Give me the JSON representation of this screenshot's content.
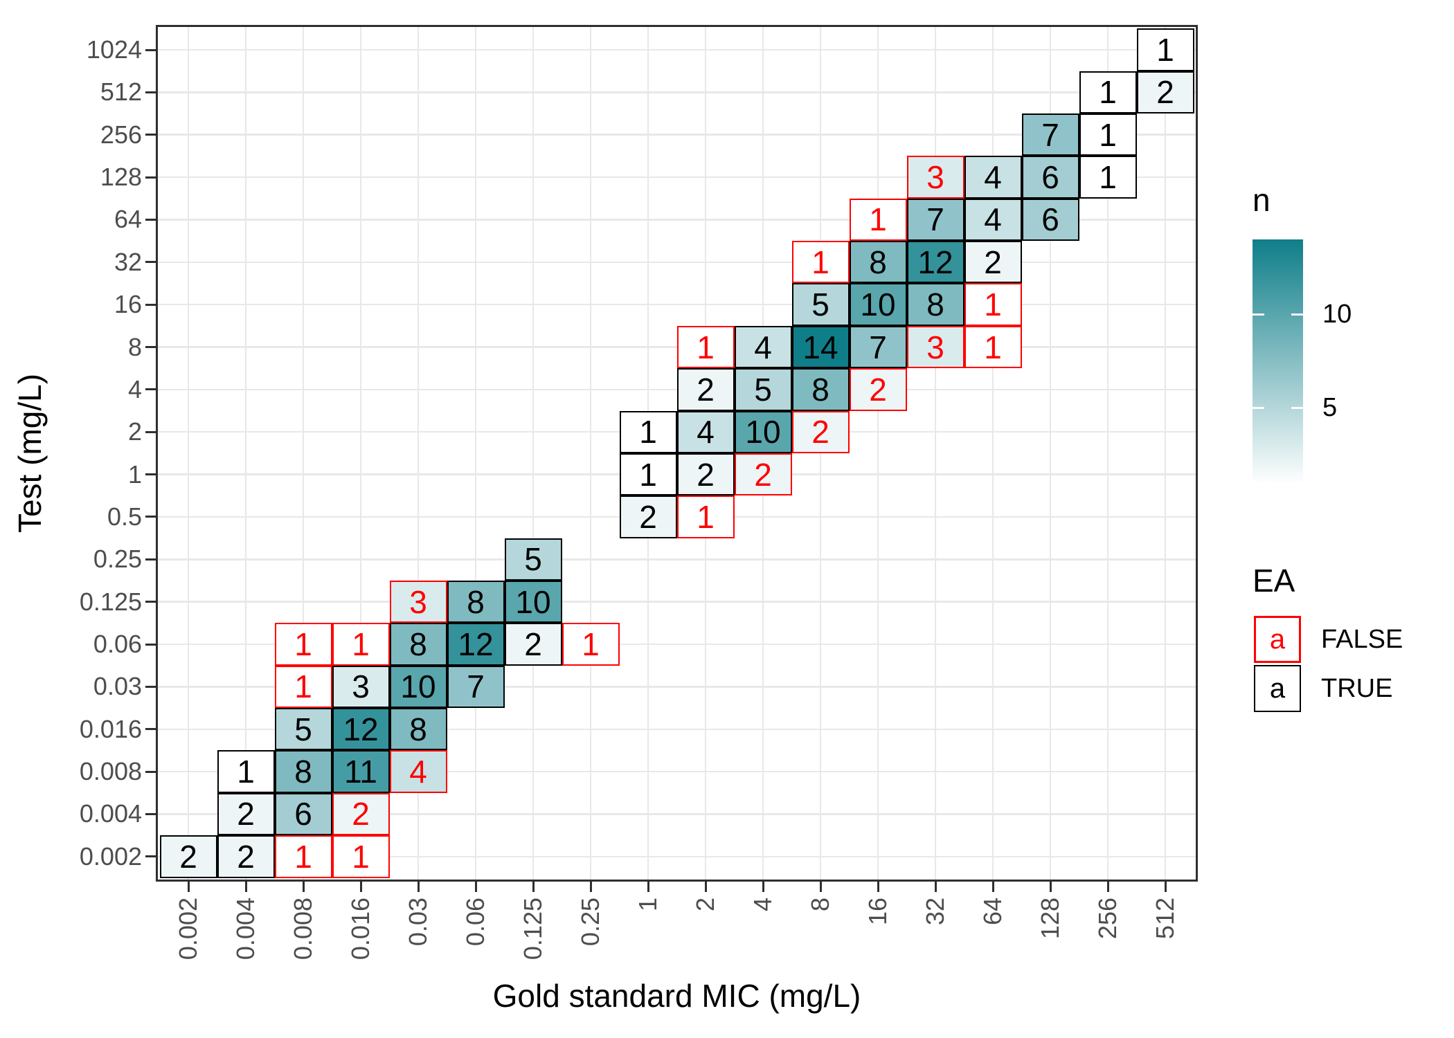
{
  "chart_data": {
    "type": "heatmap",
    "title": "",
    "xlabel": "Gold standard MIC (mg/L)",
    "ylabel": "Test (mg/L)",
    "x_categories": [
      "0.002",
      "0.004",
      "0.008",
      "0.016",
      "0.03",
      "0.06",
      "0.125",
      "0.25",
      "1",
      "2",
      "4",
      "8",
      "16",
      "32",
      "64",
      "128",
      "256",
      "512"
    ],
    "y_categories": [
      "1024",
      "512",
      "256",
      "128",
      "64",
      "32",
      "16",
      "8",
      "4",
      "2",
      "1",
      "0.5",
      "0.25",
      "0.125",
      "0.06",
      "0.03",
      "0.016",
      "0.008",
      "0.004",
      "0.002"
    ],
    "grid": true,
    "legend_position": "right",
    "n_range": [
      1,
      14
    ],
    "tiles": [
      {
        "y": "1024",
        "x": "512",
        "n": 1,
        "ea": true
      },
      {
        "y": "512",
        "x": "256",
        "n": 1,
        "ea": true
      },
      {
        "y": "512",
        "x": "512",
        "n": 2,
        "ea": true
      },
      {
        "y": "256",
        "x": "128",
        "n": 7,
        "ea": true
      },
      {
        "y": "256",
        "x": "256",
        "n": 1,
        "ea": true
      },
      {
        "y": "128",
        "x": "32",
        "n": 3,
        "ea": false
      },
      {
        "y": "128",
        "x": "64",
        "n": 4,
        "ea": true
      },
      {
        "y": "128",
        "x": "128",
        "n": 6,
        "ea": true
      },
      {
        "y": "128",
        "x": "256",
        "n": 1,
        "ea": true
      },
      {
        "y": "64",
        "x": "16",
        "n": 1,
        "ea": false
      },
      {
        "y": "64",
        "x": "32",
        "n": 7,
        "ea": true
      },
      {
        "y": "64",
        "x": "64",
        "n": 4,
        "ea": true
      },
      {
        "y": "64",
        "x": "128",
        "n": 6,
        "ea": true
      },
      {
        "y": "32",
        "x": "8",
        "n": 1,
        "ea": false
      },
      {
        "y": "32",
        "x": "16",
        "n": 8,
        "ea": true
      },
      {
        "y": "32",
        "x": "32",
        "n": 12,
        "ea": true
      },
      {
        "y": "32",
        "x": "64",
        "n": 2,
        "ea": true
      },
      {
        "y": "16",
        "x": "8",
        "n": 5,
        "ea": true
      },
      {
        "y": "16",
        "x": "16",
        "n": 10,
        "ea": true
      },
      {
        "y": "16",
        "x": "32",
        "n": 8,
        "ea": true
      },
      {
        "y": "16",
        "x": "64",
        "n": 1,
        "ea": false
      },
      {
        "y": "8",
        "x": "2",
        "n": 1,
        "ea": false
      },
      {
        "y": "8",
        "x": "4",
        "n": 4,
        "ea": true
      },
      {
        "y": "8",
        "x": "8",
        "n": 14,
        "ea": true
      },
      {
        "y": "8",
        "x": "16",
        "n": 7,
        "ea": true
      },
      {
        "y": "8",
        "x": "32",
        "n": 3,
        "ea": false
      },
      {
        "y": "8",
        "x": "64",
        "n": 1,
        "ea": false
      },
      {
        "y": "4",
        "x": "2",
        "n": 2,
        "ea": true
      },
      {
        "y": "4",
        "x": "4",
        "n": 5,
        "ea": true
      },
      {
        "y": "4",
        "x": "8",
        "n": 8,
        "ea": true
      },
      {
        "y": "4",
        "x": "16",
        "n": 2,
        "ea": false
      },
      {
        "y": "2",
        "x": "1",
        "n": 1,
        "ea": true
      },
      {
        "y": "2",
        "x": "2",
        "n": 4,
        "ea": true
      },
      {
        "y": "2",
        "x": "4",
        "n": 10,
        "ea": true
      },
      {
        "y": "2",
        "x": "8",
        "n": 2,
        "ea": false
      },
      {
        "y": "1",
        "x": "1",
        "n": 1,
        "ea": true
      },
      {
        "y": "1",
        "x": "2",
        "n": 2,
        "ea": true
      },
      {
        "y": "1",
        "x": "4",
        "n": 2,
        "ea": false
      },
      {
        "y": "0.5",
        "x": "1",
        "n": 2,
        "ea": true
      },
      {
        "y": "0.5",
        "x": "2",
        "n": 1,
        "ea": false
      },
      {
        "y": "0.25",
        "x": "0.125",
        "n": 5,
        "ea": true
      },
      {
        "y": "0.125",
        "x": "0.03",
        "n": 3,
        "ea": false
      },
      {
        "y": "0.125",
        "x": "0.06",
        "n": 8,
        "ea": true
      },
      {
        "y": "0.125",
        "x": "0.125",
        "n": 10,
        "ea": true
      },
      {
        "y": "0.06",
        "x": "0.008",
        "n": 1,
        "ea": false
      },
      {
        "y": "0.06",
        "x": "0.016",
        "n": 1,
        "ea": false
      },
      {
        "y": "0.06",
        "x": "0.03",
        "n": 8,
        "ea": true
      },
      {
        "y": "0.06",
        "x": "0.06",
        "n": 12,
        "ea": true
      },
      {
        "y": "0.06",
        "x": "0.125",
        "n": 2,
        "ea": true
      },
      {
        "y": "0.06",
        "x": "0.25",
        "n": 1,
        "ea": false
      },
      {
        "y": "0.03",
        "x": "0.008",
        "n": 1,
        "ea": false
      },
      {
        "y": "0.03",
        "x": "0.016",
        "n": 3,
        "ea": true
      },
      {
        "y": "0.03",
        "x": "0.03",
        "n": 10,
        "ea": true
      },
      {
        "y": "0.03",
        "x": "0.06",
        "n": 7,
        "ea": true
      },
      {
        "y": "0.016",
        "x": "0.008",
        "n": 5,
        "ea": true
      },
      {
        "y": "0.016",
        "x": "0.016",
        "n": 12,
        "ea": true
      },
      {
        "y": "0.016",
        "x": "0.03",
        "n": 8,
        "ea": true
      },
      {
        "y": "0.008",
        "x": "0.004",
        "n": 1,
        "ea": true
      },
      {
        "y": "0.008",
        "x": "0.008",
        "n": 8,
        "ea": true
      },
      {
        "y": "0.008",
        "x": "0.016",
        "n": 11,
        "ea": true
      },
      {
        "y": "0.008",
        "x": "0.03",
        "n": 4,
        "ea": false
      },
      {
        "y": "0.004",
        "x": "0.004",
        "n": 2,
        "ea": true
      },
      {
        "y": "0.004",
        "x": "0.008",
        "n": 6,
        "ea": true
      },
      {
        "y": "0.004",
        "x": "0.016",
        "n": 2,
        "ea": false
      },
      {
        "y": "0.002",
        "x": "0.002",
        "n": 2,
        "ea": true
      },
      {
        "y": "0.002",
        "x": "0.004",
        "n": 2,
        "ea": true
      },
      {
        "y": "0.002",
        "x": "0.008",
        "n": 1,
        "ea": false
      },
      {
        "y": "0.002",
        "x": "0.016",
        "n": 1,
        "ea": false
      }
    ]
  },
  "legend_n": {
    "title": "n",
    "gradient_low": "#FFFFFF",
    "gradient_high": "#0F7E89",
    "limits": [
      1,
      14
    ],
    "ticks": [
      {
        "label": "10",
        "value": 10
      },
      {
        "label": "5",
        "value": 5
      }
    ]
  },
  "legend_ea": {
    "title": "EA",
    "key_glyph": "a",
    "items": [
      {
        "label": "FALSE",
        "color": "#FF0000"
      },
      {
        "label": "TRUE",
        "color": "#000000"
      }
    ]
  },
  "colors": {
    "false_accent": "#FF0000",
    "true_border": "#000000",
    "gridline": "#E8E8E8",
    "axis_text": "#4D4D4D",
    "panel_border": "#2F2F2F"
  }
}
